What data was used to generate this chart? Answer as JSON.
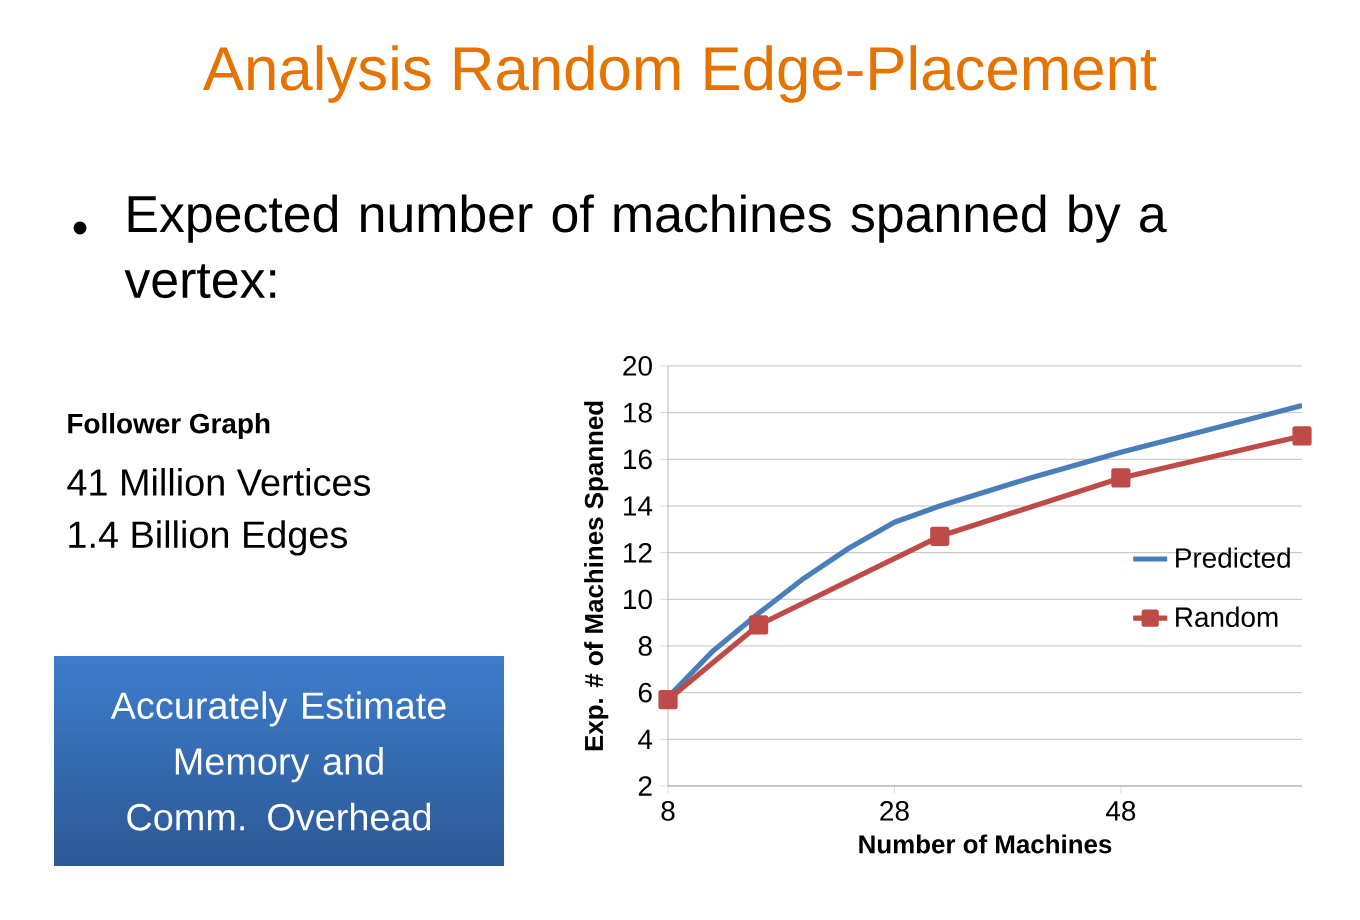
{
  "chart_data": {
    "type": "line",
    "title": "Analysis Random Edge-Placement",
    "subtitle": "Expected number of machines spanned by a vertex:",
    "xlabel": "Number of Machines",
    "ylabel": "Exp. # of Machines Spanned",
    "annotations": [
      "Follower Graph",
      "41 Million Vertices",
      "1.4 Billion Edges",
      "Accurately Estimate Memory and Comm. Overhead"
    ],
    "series": [
      {
        "name": "Predicted",
        "color": "#4a7ebb",
        "marker": "none",
        "x": [
          8,
          12,
          16,
          20,
          24,
          28,
          32,
          40,
          48,
          56,
          64
        ],
        "values": [
          5.8,
          7.8,
          9.4,
          10.9,
          12.2,
          13.3,
          14.0,
          15.2,
          16.3,
          17.3,
          18.3
        ]
      },
      {
        "name": "Random",
        "color": "#be4b48",
        "marker": "square",
        "x": [
          8,
          16,
          32,
          48,
          64
        ],
        "values": [
          5.7,
          8.9,
          12.7,
          15.2,
          17.0
        ]
      }
    ],
    "xlim": [
      8,
      64
    ],
    "ylim": [
      2,
      20
    ],
    "xticks": [
      8,
      28,
      48
    ],
    "yticks": [
      2,
      4,
      6,
      8,
      10,
      12,
      14,
      16,
      18,
      20
    ],
    "grid": "y",
    "legend": "right"
  }
}
